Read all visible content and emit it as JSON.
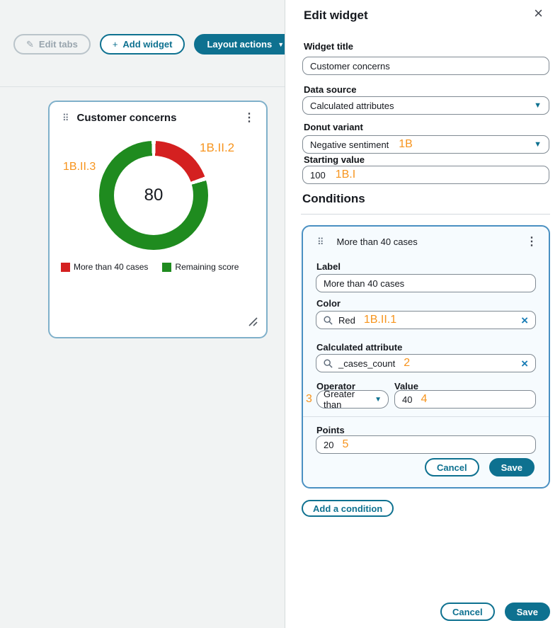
{
  "colors": {
    "accent_teal": "#0e7190",
    "clear_x_blue": "#1a7db6",
    "annotation_orange": "#f7941d",
    "condition_card_border": "#4a90c2",
    "condition_card_bg": "#f6fbfe",
    "canvas_bg": "#f1f3f3",
    "donut_red": "#d42020",
    "donut_green": "#1f8b1f"
  },
  "toolbar": {
    "edit_tabs_label": "Edit tabs",
    "add_widget_label": "Add widget",
    "layout_actions_label": "Layout actions"
  },
  "widget_card": {
    "title": "Customer concerns",
    "center_value": "80",
    "annotation_right": "1B.II.2",
    "annotation_left": "1B.II.3"
  },
  "chart_data": {
    "type": "pie",
    "variant": "donut",
    "title": "Customer concerns",
    "center_value": 80,
    "starting_value": 100,
    "segments": [
      {
        "label": "More than 40 cases",
        "value": 20,
        "color": "#d42020"
      },
      {
        "label": "Remaining score",
        "value": 80,
        "color": "#1f8b1f"
      }
    ],
    "legend_position": "bottom"
  },
  "panel": {
    "title": "Edit widget",
    "widget_title": {
      "label": "Widget title",
      "value": "Customer concerns"
    },
    "data_source": {
      "label": "Data source",
      "value": "Calculated attributes"
    },
    "donut_variant": {
      "label": "Donut variant",
      "value": "Negative sentiment",
      "annotation": "1B"
    },
    "starting_value": {
      "label": "Starting value",
      "value": "100",
      "annotation": "1B.I"
    },
    "conditions": {
      "heading": "Conditions",
      "card": {
        "title": "More than 40 cases",
        "label_field": {
          "label": "Label",
          "value": "More than 40 cases"
        },
        "color_field": {
          "label": "Color",
          "value": "Red",
          "annotation": "1B.II.1"
        },
        "attribute_field": {
          "label": "Calculated attribute",
          "value": "_cases_count",
          "annotation": "2"
        },
        "operator_field": {
          "label": "Operator",
          "value": "Greater than",
          "annotation": "3"
        },
        "value_field": {
          "label": "Value",
          "value": "40",
          "annotation": "4"
        },
        "points_field": {
          "label": "Points",
          "value": "20",
          "annotation": "5"
        },
        "cancel_label": "Cancel",
        "save_label": "Save"
      },
      "add_condition_label": "Add a condition"
    },
    "footer": {
      "cancel_label": "Cancel",
      "save_label": "Save"
    }
  }
}
